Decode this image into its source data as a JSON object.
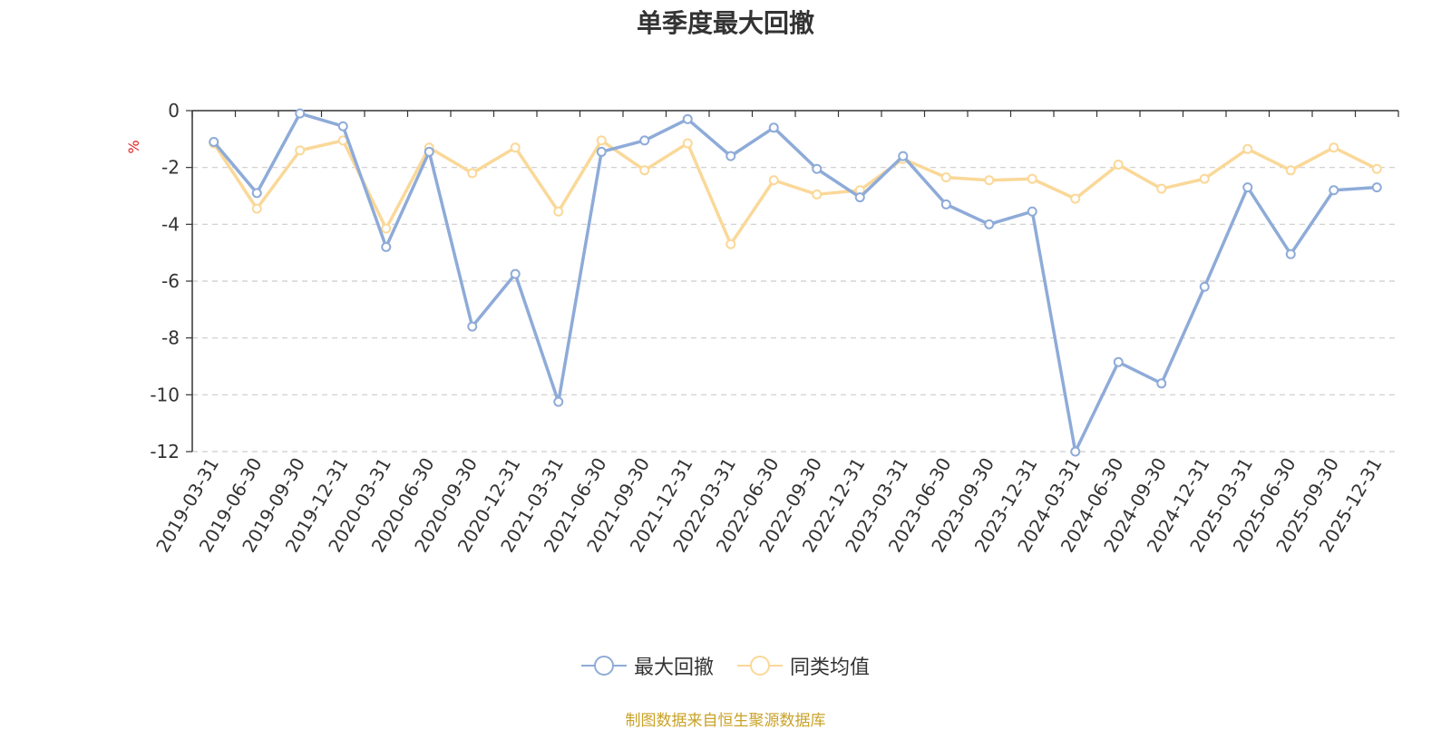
{
  "chart_data": {
    "type": "line",
    "title": "单季度最大回撤",
    "ylabel": "%",
    "ylim": [
      -12,
      0
    ],
    "yticks": [
      0,
      -2,
      -4,
      -6,
      -8,
      -10,
      -12
    ],
    "grid": true,
    "legend_position": "bottom-center",
    "categories": [
      "2019-03-31",
      "2019-06-30",
      "2019-09-30",
      "2019-12-31",
      "2020-03-31",
      "2020-06-30",
      "2020-09-30",
      "2020-12-31",
      "2021-03-31",
      "2021-06-30",
      "2021-09-30",
      "2021-12-31",
      "2022-03-31",
      "2022-06-30",
      "2022-09-30",
      "2022-12-31",
      "2023-03-31",
      "2023-06-30",
      "2023-09-30",
      "2023-12-31",
      "2024-03-31",
      "2024-06-30",
      "2024-09-30",
      "2024-12-31",
      "2025-03-31",
      "2025-06-30",
      "2025-09-30",
      "2025-12-31"
    ],
    "series": [
      {
        "name": "最大回撤",
        "color": "#8eabd8",
        "values": [
          -1.1,
          -2.9,
          -0.1,
          -0.55,
          -4.8,
          -1.45,
          -7.6,
          -5.75,
          -10.25,
          -1.45,
          -1.05,
          -0.3,
          -1.6,
          -0.6,
          -2.05,
          -3.05,
          -1.6,
          -3.3,
          -4.0,
          -3.55,
          -12.0,
          -8.85,
          -9.6,
          -6.2,
          -2.7,
          -5.05,
          -2.8,
          -2.7
        ]
      },
      {
        "name": "同类均值",
        "color": "#fad898",
        "values": [
          -1.15,
          -3.45,
          -1.4,
          -1.05,
          -4.15,
          -1.3,
          -2.2,
          -1.3,
          -3.55,
          -1.05,
          -2.1,
          -1.15,
          -4.7,
          -2.45,
          -2.95,
          -2.8,
          -1.7,
          -2.35,
          -2.45,
          -2.4,
          -3.1,
          -1.9,
          -2.75,
          -2.4,
          -1.35,
          -2.1,
          -1.3,
          -2.05
        ]
      }
    ]
  },
  "footer": {
    "source": "制图数据来自恒生聚源数据库"
  }
}
